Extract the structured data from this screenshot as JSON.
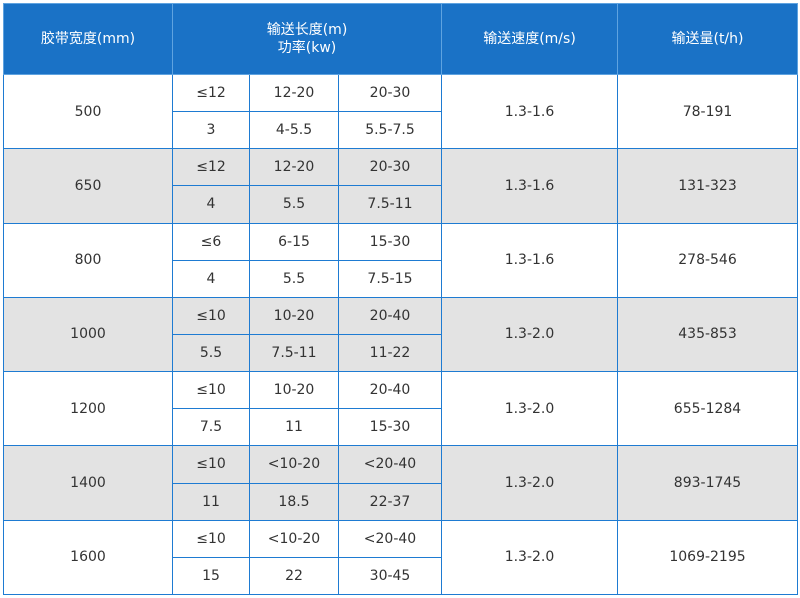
{
  "header": {
    "width": "胶带宽度(mm)",
    "length": "输送长度(m)",
    "power": "功率(kw)",
    "speed": "输送速度(m/s)",
    "capacity": "输送量(t/h)"
  },
  "rows": [
    {
      "width": "500",
      "length": [
        "≤12",
        "12-20",
        "20-30"
      ],
      "power": [
        "3",
        "4-5.5",
        "5.5-7.5"
      ],
      "speed": "1.3-1.6",
      "capacity": "78-191"
    },
    {
      "width": "650",
      "length": [
        "≤12",
        "12-20",
        "20-30"
      ],
      "power": [
        "4",
        "5.5",
        "7.5-11"
      ],
      "speed": "1.3-1.6",
      "capacity": "131-323"
    },
    {
      "width": "800",
      "length": [
        "≤6",
        "6-15",
        "15-30"
      ],
      "power": [
        "4",
        "5.5",
        "7.5-15"
      ],
      "speed": "1.3-1.6",
      "capacity": "278-546"
    },
    {
      "width": "1000",
      "length": [
        "≤10",
        "10-20",
        "20-40"
      ],
      "power": [
        "5.5",
        "7.5-11",
        "11-22"
      ],
      "speed": "1.3-2.0",
      "capacity": "435-853"
    },
    {
      "width": "1200",
      "length": [
        "≤10",
        "10-20",
        "20-40"
      ],
      "power": [
        "7.5",
        "11",
        "15-30"
      ],
      "speed": "1.3-2.0",
      "capacity": "655-1284"
    },
    {
      "width": "1400",
      "length": [
        "≤10",
        "<10-20",
        "<20-40"
      ],
      "power": [
        "11",
        "18.5",
        "22-37"
      ],
      "speed": "1.3-2.0",
      "capacity": "893-1745"
    },
    {
      "width": "1600",
      "length": [
        "≤10",
        "<10-20",
        "<20-40"
      ],
      "power": [
        "15",
        "22",
        "30-45"
      ],
      "speed": "1.3-2.0",
      "capacity": "1069-2195"
    }
  ]
}
